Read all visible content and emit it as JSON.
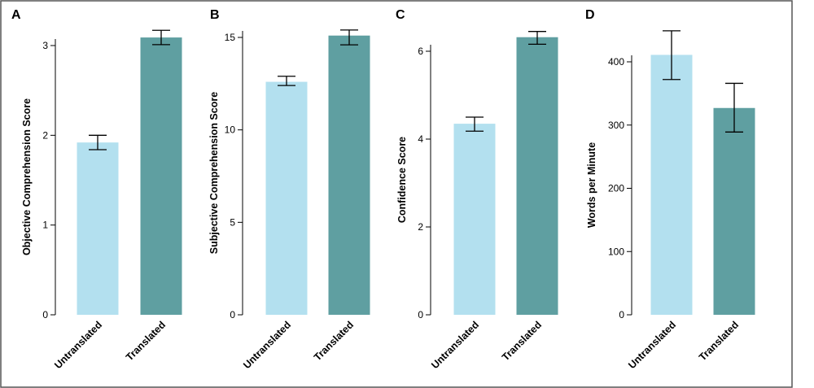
{
  "chart_data": [
    {
      "type": "bar",
      "panel": "A",
      "ylabel": "Objective Comprehension Score",
      "categories": [
        "Untranslated",
        "Translated"
      ],
      "values": [
        1.92,
        3.09
      ],
      "error_low": [
        1.84,
        3.01
      ],
      "error_high": [
        2.0,
        3.17
      ],
      "ylim": [
        0,
        3.0
      ],
      "yticks": [
        0,
        1,
        2,
        3
      ],
      "colors": [
        "#b3e0ef",
        "#5f9fa1"
      ]
    },
    {
      "type": "bar",
      "panel": "B",
      "ylabel": "Subjective Comprehension Score",
      "categories": [
        "Untranslated",
        "Translated"
      ],
      "values": [
        12.6,
        15.1
      ],
      "error_low": [
        12.4,
        14.6
      ],
      "error_high": [
        12.9,
        15.4
      ],
      "ylim": [
        0,
        15
      ],
      "yticks": [
        0,
        5,
        10,
        15
      ],
      "colors": [
        "#b3e0ef",
        "#5f9fa1"
      ]
    },
    {
      "type": "bar",
      "panel": "C",
      "ylabel": "Confidence Score",
      "categories": [
        "Untranslated",
        "Translated"
      ],
      "values": [
        4.35,
        6.32
      ],
      "error_low": [
        4.18,
        6.16
      ],
      "error_high": [
        4.5,
        6.45
      ],
      "ylim": [
        0,
        6
      ],
      "yticks": [
        0,
        2,
        4,
        6
      ],
      "colors": [
        "#b3e0ef",
        "#5f9fa1"
      ]
    },
    {
      "type": "bar",
      "panel": "D",
      "ylabel": "Words per Minute",
      "categories": [
        "Untranslated",
        "Translated"
      ],
      "values": [
        411,
        327
      ],
      "error_low": [
        372,
        289
      ],
      "error_high": [
        449,
        366
      ],
      "ylim": [
        0,
        400
      ],
      "yticks": [
        0,
        100,
        200,
        300,
        400
      ],
      "colors": [
        "#b3e0ef",
        "#5f9fa1"
      ]
    }
  ]
}
